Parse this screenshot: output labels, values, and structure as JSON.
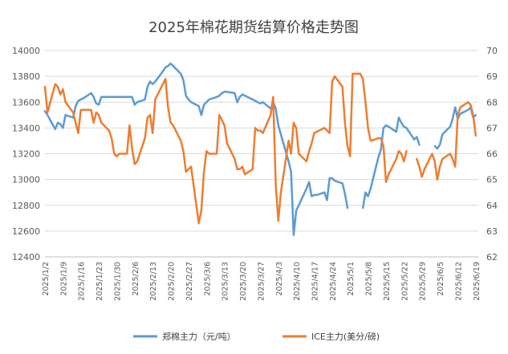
{
  "chart_data": {
    "type": "line",
    "title": "2025年棉花期货结算价格走势图",
    "y_left": {
      "min": 12400,
      "max": 14000,
      "step": 200
    },
    "y_right": {
      "min": 62,
      "max": 70,
      "step": 1
    },
    "x_range": [
      "2025-01-02",
      "2025-06-20"
    ],
    "x_tick_labels": [
      "2025/1/2",
      "2025/1/9",
      "2025/1/16",
      "2025/1/23",
      "2025/1/30",
      "2025/2/6",
      "2025/2/13",
      "2025/2/20",
      "2025/2/27",
      "2025/3/6",
      "2025/3/13",
      "2025/3/20",
      "2025/3/27",
      "2025/4/3",
      "2025/4/10",
      "2025/4/17",
      "2025/4/24",
      "2025/5/1",
      "2025/5/8",
      "2025/5/15",
      "2025/5/22",
      "2025/5/29",
      "2025/6/5",
      "2025/6/12",
      "2025/6/19"
    ],
    "grid": "horizontal",
    "legend_position": "bottom",
    "series": [
      {
        "name": "郑棉主力（元/吨）",
        "axis": "left",
        "color": "#5B9BD5",
        "points": [
          [
            "2025-01-02",
            13530
          ],
          [
            "2025-01-03",
            13500
          ],
          [
            "2025-01-06",
            13390
          ],
          [
            "2025-01-07",
            13440
          ],
          [
            "2025-01-08",
            13430
          ],
          [
            "2025-01-09",
            13400
          ],
          [
            "2025-01-10",
            13500
          ],
          [
            "2025-01-13",
            13480
          ],
          [
            "2025-01-14",
            13570
          ],
          [
            "2025-01-15",
            13610
          ],
          [
            "2025-01-16",
            13620
          ],
          [
            "2025-01-17",
            13630
          ],
          [
            "2025-01-20",
            13670
          ],
          [
            "2025-01-21",
            13640
          ],
          [
            "2025-01-22",
            13590
          ],
          [
            "2025-01-23",
            13580
          ],
          [
            "2025-01-24",
            13640
          ],
          [
            "2025-02-05",
            13640
          ],
          [
            "2025-02-06",
            13580
          ],
          [
            "2025-02-07",
            13600
          ],
          [
            "2025-02-10",
            13620
          ],
          [
            "2025-02-11",
            13720
          ],
          [
            "2025-02-12",
            13760
          ],
          [
            "2025-02-13",
            13740
          ],
          [
            "2025-02-14",
            13760
          ],
          [
            "2025-02-17",
            13840
          ],
          [
            "2025-02-18",
            13870
          ],
          [
            "2025-02-19",
            13880
          ],
          [
            "2025-02-20",
            13900
          ],
          [
            "2025-02-21",
            13880
          ],
          [
            "2025-02-24",
            13820
          ],
          [
            "2025-02-25",
            13770
          ],
          [
            "2025-02-26",
            13650
          ],
          [
            "2025-02-27",
            13620
          ],
          [
            "2025-02-28",
            13600
          ],
          [
            "2025-03-03",
            13570
          ],
          [
            "2025-03-04",
            13500
          ],
          [
            "2025-03-05",
            13580
          ],
          [
            "2025-03-06",
            13600
          ],
          [
            "2025-03-07",
            13620
          ],
          [
            "2025-03-10",
            13640
          ],
          [
            "2025-03-11",
            13650
          ],
          [
            "2025-03-12",
            13670
          ],
          [
            "2025-03-13",
            13680
          ],
          [
            "2025-03-14",
            13680
          ],
          [
            "2025-03-17",
            13670
          ],
          [
            "2025-03-18",
            13600
          ],
          [
            "2025-03-19",
            13640
          ],
          [
            "2025-03-20",
            13660
          ],
          [
            "2025-03-21",
            13650
          ],
          [
            "2025-03-24",
            13620
          ],
          [
            "2025-03-25",
            13610
          ],
          [
            "2025-03-26",
            13600
          ],
          [
            "2025-03-27",
            13590
          ],
          [
            "2025-03-28",
            13600
          ],
          [
            "2025-03-31",
            13550
          ],
          [
            "2025-04-01",
            13600
          ],
          [
            "2025-04-02",
            13550
          ],
          [
            "2025-04-03",
            13420
          ],
          [
            "2025-04-07",
            13140
          ],
          [
            "2025-04-08",
            13060
          ],
          [
            "2025-04-09",
            12570
          ],
          [
            "2025-04-10",
            12760
          ],
          [
            "2025-04-11",
            12800
          ],
          [
            "2025-04-14",
            12930
          ],
          [
            "2025-04-15",
            12980
          ],
          [
            "2025-04-16",
            12870
          ],
          [
            "2025-04-17",
            12880
          ],
          [
            "2025-04-18",
            12880
          ],
          [
            "2025-04-21",
            12900
          ],
          [
            "2025-04-22",
            12840
          ],
          [
            "2025-04-23",
            13010
          ],
          [
            "2025-04-24",
            13010
          ],
          [
            "2025-04-25",
            12990
          ],
          [
            "2025-04-28",
            12970
          ],
          [
            "2025-04-29",
            12890
          ],
          [
            "2025-04-30",
            12780
          ],
          null,
          [
            "2025-05-06",
            12780
          ],
          [
            "2025-05-07",
            12900
          ],
          [
            "2025-05-08",
            12870
          ],
          [
            "2025-05-09",
            12930
          ],
          [
            "2025-05-12",
            13170
          ],
          [
            "2025-05-13",
            13230
          ],
          [
            "2025-05-14",
            13400
          ],
          [
            "2025-05-15",
            13420
          ],
          [
            "2025-05-16",
            13410
          ],
          [
            "2025-05-19",
            13370
          ],
          [
            "2025-05-20",
            13480
          ],
          [
            "2025-05-21",
            13440
          ],
          [
            "2025-05-22",
            13410
          ],
          [
            "2025-05-23",
            13400
          ],
          [
            "2025-05-26",
            13310
          ],
          [
            "2025-05-27",
            13330
          ],
          [
            "2025-05-28",
            13270
          ],
          null,
          [
            "2025-06-03",
            13260
          ],
          [
            "2025-06-04",
            13240
          ],
          [
            "2025-06-05",
            13270
          ],
          [
            "2025-06-06",
            13350
          ],
          [
            "2025-06-09",
            13410
          ],
          [
            "2025-06-10",
            13470
          ],
          [
            "2025-06-11",
            13560
          ],
          [
            "2025-06-12",
            13470
          ],
          [
            "2025-06-13",
            13510
          ],
          [
            "2025-06-16",
            13540
          ],
          [
            "2025-06-17",
            13560
          ],
          [
            "2025-06-18",
            13480
          ],
          [
            "2025-06-19",
            13500
          ]
        ]
      },
      {
        "name": "ICE主力(美分/磅)",
        "axis": "right",
        "color": "#ED7D31",
        "points": [
          [
            "2025-01-02",
            68.6
          ],
          [
            "2025-01-03",
            67.6
          ],
          [
            "2025-01-06",
            68.7
          ],
          [
            "2025-01-07",
            68.6
          ],
          [
            "2025-01-08",
            68.3
          ],
          [
            "2025-01-09",
            68.5
          ],
          [
            "2025-01-10",
            68.0
          ],
          [
            "2025-01-13",
            67.6
          ],
          [
            "2025-01-14",
            67.2
          ],
          [
            "2025-01-15",
            66.8
          ],
          [
            "2025-01-16",
            67.7
          ],
          [
            "2025-01-17",
            67.7
          ],
          [
            "2025-01-20",
            67.7
          ],
          [
            "2025-01-21",
            67.2
          ],
          [
            "2025-01-22",
            67.6
          ],
          [
            "2025-01-23",
            67.5
          ],
          [
            "2025-01-24",
            67.2
          ],
          [
            "2025-01-27",
            66.9
          ],
          [
            "2025-01-28",
            66.6
          ],
          [
            "2025-01-29",
            66.0
          ],
          [
            "2025-01-30",
            65.9
          ],
          [
            "2025-01-31",
            66.0
          ],
          [
            "2025-02-03",
            66.0
          ],
          [
            "2025-02-04",
            67.1
          ],
          [
            "2025-02-05",
            66.2
          ],
          [
            "2025-02-06",
            65.6
          ],
          [
            "2025-02-07",
            65.7
          ],
          [
            "2025-02-10",
            66.6
          ],
          [
            "2025-02-11",
            67.4
          ],
          [
            "2025-02-12",
            67.5
          ],
          [
            "2025-02-13",
            66.8
          ],
          [
            "2025-02-14",
            68.1
          ],
          [
            "2025-02-18",
            68.9
          ],
          [
            "2025-02-19",
            67.8
          ],
          [
            "2025-02-20",
            67.2
          ],
          [
            "2025-02-21",
            67.1
          ],
          [
            "2025-02-24",
            66.5
          ],
          [
            "2025-02-25",
            66.1
          ],
          [
            "2025-02-26",
            65.3
          ],
          [
            "2025-02-27",
            65.4
          ],
          [
            "2025-02-28",
            65.5
          ],
          [
            "2025-03-03",
            63.3
          ],
          [
            "2025-03-04",
            63.8
          ],
          [
            "2025-03-05",
            65.3
          ],
          [
            "2025-03-06",
            66.1
          ],
          [
            "2025-03-07",
            66.0
          ],
          [
            "2025-03-10",
            66.0
          ],
          [
            "2025-03-11",
            67.5
          ],
          [
            "2025-03-12",
            67.3
          ],
          [
            "2025-03-13",
            67.1
          ],
          [
            "2025-03-14",
            66.4
          ],
          [
            "2025-03-17",
            65.8
          ],
          [
            "2025-03-18",
            65.4
          ],
          [
            "2025-03-19",
            65.4
          ],
          [
            "2025-03-20",
            65.5
          ],
          [
            "2025-03-21",
            65.2
          ],
          [
            "2025-03-24",
            65.4
          ],
          [
            "2025-03-25",
            67.0
          ],
          [
            "2025-03-26",
            66.9
          ],
          [
            "2025-03-27",
            66.9
          ],
          [
            "2025-03-28",
            66.8
          ],
          [
            "2025-03-31",
            67.5
          ],
          [
            "2025-04-01",
            68.2
          ],
          [
            "2025-04-02",
            64.8
          ],
          [
            "2025-04-03",
            63.4
          ],
          [
            "2025-04-04",
            64.5
          ],
          [
            "2025-04-07",
            66.5
          ],
          [
            "2025-04-08",
            66.0
          ],
          [
            "2025-04-09",
            67.2
          ],
          [
            "2025-04-10",
            67.0
          ],
          [
            "2025-04-11",
            66.0
          ],
          [
            "2025-04-14",
            65.7
          ],
          [
            "2025-04-15",
            66.1
          ],
          [
            "2025-04-16",
            66.4
          ],
          [
            "2025-04-17",
            66.8
          ],
          [
            "2025-04-21",
            67.0
          ],
          [
            "2025-04-22",
            66.9
          ],
          [
            "2025-04-23",
            66.8
          ],
          [
            "2025-04-24",
            68.8
          ],
          [
            "2025-04-25",
            69.0
          ],
          [
            "2025-04-28",
            68.6
          ],
          [
            "2025-04-29",
            67.2
          ],
          [
            "2025-04-30",
            66.3
          ],
          [
            "2025-05-01",
            65.9
          ],
          [
            "2025-05-02",
            69.1
          ],
          [
            "2025-05-05",
            69.1
          ],
          [
            "2025-05-06",
            68.9
          ],
          [
            "2025-05-07",
            68.0
          ],
          [
            "2025-05-08",
            67.0
          ],
          [
            "2025-05-09",
            66.5
          ],
          [
            "2025-05-12",
            66.6
          ],
          [
            "2025-05-13",
            66.6
          ],
          [
            "2025-05-14",
            66.3
          ],
          [
            "2025-05-15",
            64.9
          ],
          [
            "2025-05-16",
            65.2
          ],
          [
            "2025-05-19",
            65.8
          ],
          [
            "2025-05-20",
            66.1
          ],
          [
            "2025-05-21",
            66.0
          ],
          [
            "2025-05-22",
            65.7
          ],
          [
            "2025-05-23",
            66.1
          ],
          null,
          [
            "2025-05-27",
            65.8
          ],
          [
            "2025-05-28",
            65.5
          ],
          [
            "2025-05-29",
            65.1
          ],
          [
            "2025-05-30",
            65.4
          ],
          [
            "2025-06-02",
            66.0
          ],
          [
            "2025-06-03",
            65.7
          ],
          [
            "2025-06-04",
            65.0
          ],
          [
            "2025-06-05",
            65.5
          ],
          [
            "2025-06-06",
            65.8
          ],
          [
            "2025-06-09",
            66.0
          ],
          [
            "2025-06-10",
            65.8
          ],
          [
            "2025-06-11",
            65.5
          ],
          [
            "2025-06-12",
            67.5
          ],
          [
            "2025-06-13",
            67.8
          ],
          [
            "2025-06-16",
            68.0
          ],
          [
            "2025-06-17",
            67.9
          ],
          [
            "2025-06-18",
            67.5
          ],
          [
            "2025-06-19",
            66.7
          ]
        ]
      }
    ]
  }
}
